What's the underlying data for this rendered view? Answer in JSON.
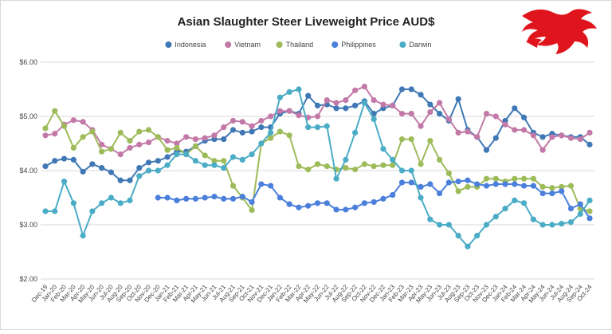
{
  "chart_data": {
    "type": "line",
    "title": "Asian Slaughter Steer Liveweight Price AUD$",
    "categories": [
      "Dec-19",
      "Jan-20",
      "Feb-20",
      "Mar-20",
      "Apr-20",
      "May-20",
      "Jun-20",
      "Jul-20",
      "Aug-20",
      "Sep-20",
      "Oct-20",
      "Nov-20",
      "Dec-20",
      "Jan-21",
      "Feb-21",
      "Mar-21",
      "Apr-21",
      "May-21",
      "Jun-21",
      "Jul-21",
      "Aug-21",
      "Sep-21",
      "Oct-21",
      "Nov-21",
      "Dec-21",
      "Jan-22",
      "Feb-22",
      "Mar-22",
      "Apr-22",
      "May-22",
      "Jun-22",
      "Jul-22",
      "Aug-22",
      "Sep-22",
      "Oct-22",
      "Nov-22",
      "Dec-22",
      "Jan-23",
      "Feb-23",
      "Mar-23",
      "Apr-23",
      "May-23",
      "Jun-23",
      "Jul-23",
      "Aug-23",
      "Sep-23",
      "Oct-23",
      "Nov-23",
      "Dec-23",
      "Jan-24",
      "Feb-24",
      "Mar-24",
      "Apr-24",
      "May-24",
      "Jun-24",
      "Jul-24",
      "Aug-24",
      "Sep-24",
      "Oct-24"
    ],
    "series": [
      {
        "name": "Indonesia",
        "color": "#3f78b5",
        "values": [
          4.08,
          4.18,
          4.22,
          4.2,
          3.98,
          4.12,
          4.05,
          3.97,
          3.82,
          3.82,
          4.05,
          4.15,
          4.18,
          4.25,
          4.35,
          4.35,
          4.45,
          4.55,
          4.58,
          4.58,
          4.75,
          4.7,
          4.72,
          4.8,
          4.8,
          5.05,
          5.1,
          5.05,
          5.38,
          5.2,
          5.22,
          5.15,
          5.15,
          5.2,
          5.28,
          5.05,
          5.15,
          5.2,
          5.5,
          5.5,
          5.4,
          5.22,
          5.05,
          4.92,
          5.32,
          4.75,
          4.62,
          4.38,
          4.6,
          4.92,
          5.15,
          4.98,
          4.7,
          4.62,
          4.68,
          4.65,
          4.62,
          4.62,
          4.48
        ]
      },
      {
        "name": "Vietnam",
        "color": "#c279a8",
        "values": [
          4.65,
          4.68,
          4.85,
          4.93,
          4.9,
          4.75,
          4.48,
          4.4,
          4.3,
          4.42,
          4.48,
          4.52,
          4.62,
          4.55,
          4.5,
          4.62,
          4.58,
          4.6,
          4.65,
          4.8,
          4.92,
          4.9,
          4.82,
          4.92,
          5.0,
          5.1,
          5.1,
          5.02,
          4.98,
          5.0,
          5.3,
          5.25,
          5.3,
          5.48,
          5.55,
          5.3,
          5.22,
          5.2,
          5.05,
          5.05,
          4.82,
          5.08,
          5.25,
          4.95,
          4.7,
          4.72,
          4.62,
          5.05,
          5.0,
          4.85,
          4.75,
          4.75,
          4.65,
          4.38,
          4.62,
          4.65,
          4.6,
          4.58,
          4.7
        ]
      },
      {
        "name": "Thailand",
        "color": "#9dbb59",
        "values": [
          4.78,
          5.1,
          4.82,
          4.42,
          4.62,
          4.72,
          4.35,
          4.4,
          4.7,
          4.55,
          4.72,
          4.75,
          4.62,
          4.38,
          4.42,
          4.3,
          4.45,
          4.28,
          4.18,
          4.18,
          3.72,
          3.5,
          3.27,
          4.5,
          4.6,
          4.72,
          4.65,
          4.08,
          4.02,
          4.12,
          4.08,
          4.02,
          4.05,
          4.02,
          4.12,
          4.08,
          4.1,
          4.1,
          4.58,
          4.58,
          4.12,
          4.55,
          4.2,
          3.95,
          3.62,
          3.7,
          3.7,
          3.85,
          3.85,
          3.8,
          3.85,
          3.85,
          3.85,
          3.7,
          3.68,
          3.7,
          3.72,
          3.3,
          3.25
        ]
      },
      {
        "name": "Philippines",
        "color": "#4a7fdc",
        "values": [
          null,
          null,
          null,
          null,
          null,
          null,
          null,
          null,
          null,
          null,
          null,
          null,
          3.5,
          3.5,
          3.45,
          3.48,
          3.48,
          3.5,
          3.52,
          3.48,
          3.48,
          3.52,
          3.42,
          3.75,
          3.72,
          3.5,
          3.38,
          3.32,
          3.35,
          3.4,
          3.4,
          3.28,
          3.28,
          3.32,
          3.4,
          3.42,
          3.48,
          3.55,
          3.78,
          3.78,
          3.7,
          3.75,
          3.58,
          3.78,
          3.8,
          3.82,
          3.75,
          3.72,
          3.75,
          3.75,
          3.75,
          3.72,
          3.72,
          3.58,
          3.58,
          3.62,
          3.3,
          3.38,
          3.12
        ]
      },
      {
        "name": "Darwin",
        "color": "#4bacc6",
        "values": [
          3.25,
          3.25,
          3.8,
          3.4,
          2.8,
          3.25,
          3.4,
          3.5,
          3.4,
          3.45,
          3.9,
          4.0,
          4.0,
          4.1,
          4.3,
          4.3,
          4.18,
          4.1,
          4.1,
          4.05,
          4.25,
          4.2,
          4.3,
          4.5,
          4.7,
          5.35,
          5.45,
          5.5,
          4.8,
          4.8,
          4.82,
          3.85,
          4.2,
          4.7,
          5.25,
          4.95,
          4.4,
          4.2,
          4.0,
          4.0,
          3.5,
          3.1,
          3.0,
          3.0,
          2.8,
          2.6,
          2.8,
          3.0,
          3.15,
          3.3,
          3.45,
          3.4,
          3.1,
          3.0,
          3.0,
          3.02,
          3.05,
          3.2,
          3.45
        ]
      }
    ],
    "ylim": [
      2,
      6
    ],
    "yticks": [
      {
        "value": 2,
        "label": "$2.00"
      },
      {
        "value": 3,
        "label": "$3.00"
      },
      {
        "value": 4,
        "label": "$4.00"
      },
      {
        "value": 5,
        "label": "$5.00"
      },
      {
        "value": 6,
        "label": "$6.00"
      }
    ],
    "grid": true,
    "legend": "top"
  }
}
